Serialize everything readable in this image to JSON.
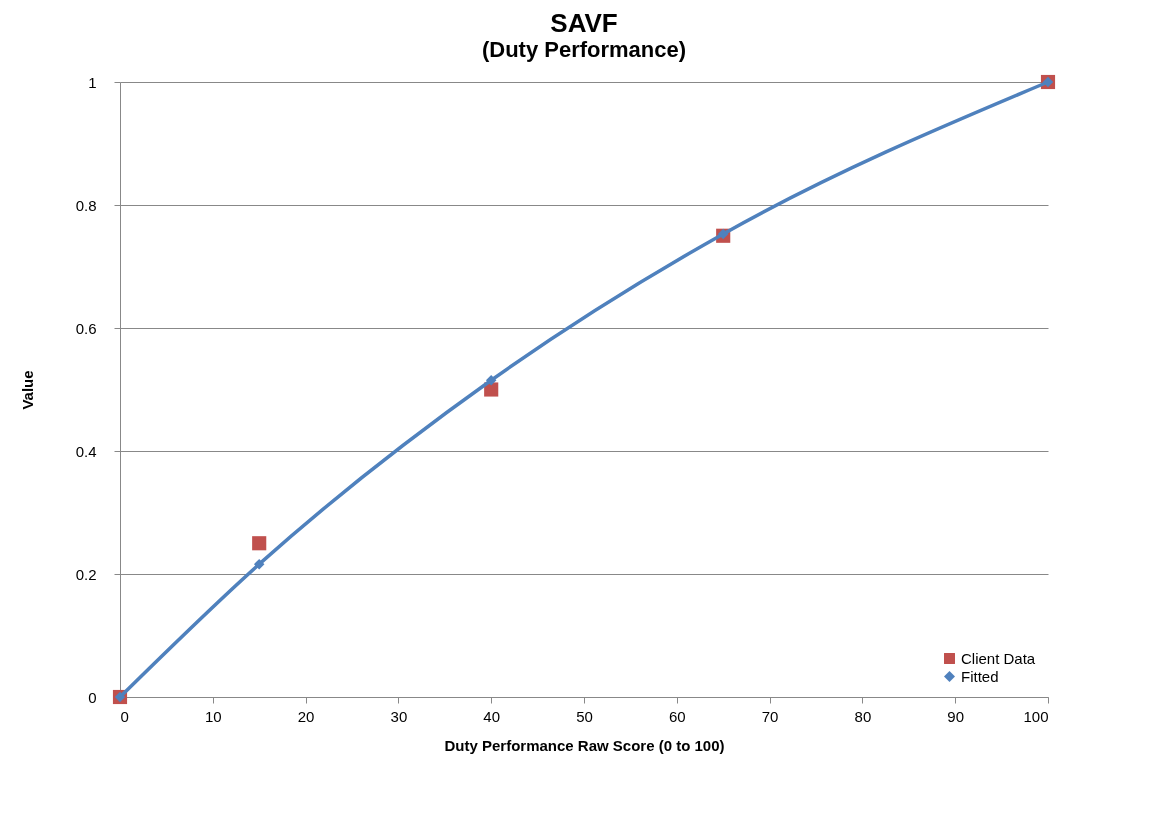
{
  "chart_data": {
    "type": "line",
    "title": "SAVF",
    "subtitle": "(Duty Performance)",
    "xlabel": "Duty Performance Raw Score (0 to 100)",
    "ylabel": "Value",
    "x": [
      0,
      15,
      40,
      65,
      100
    ],
    "series": [
      {
        "name": "Client Data",
        "type": "scatter",
        "marker": "square",
        "color": "#c0504d",
        "values": [
          0,
          0.25,
          0.5,
          0.75,
          1
        ]
      },
      {
        "name": "Fitted",
        "marker": "diamond",
        "color": "#4f81bd",
        "values": [
          0,
          0.216,
          0.515,
          0.753,
          1
        ]
      }
    ],
    "xlim": [
      0,
      100
    ],
    "xticks": [
      0,
      10,
      20,
      30,
      40,
      50,
      60,
      70,
      80,
      90,
      100
    ],
    "ylim": [
      0,
      1
    ],
    "yticks": [
      0,
      0.2,
      0.4,
      0.6,
      0.8,
      1
    ],
    "grid": "y",
    "legend": "bottom right"
  }
}
